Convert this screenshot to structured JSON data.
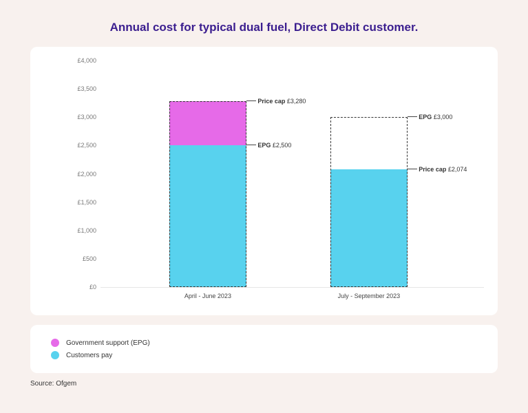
{
  "title": {
    "text": "Annual cost for typical dual fuel, Direct Debit customer.",
    "color": "#3b1e8f",
    "fontsize": 17
  },
  "background_color": "#f8f1ee",
  "card_bg": "#ffffff",
  "chart": {
    "type": "bar-stacked",
    "ylim": [
      0,
      4000
    ],
    "ytick_step": 500,
    "yticks": [
      {
        "v": 0,
        "label": "£0"
      },
      {
        "v": 500,
        "label": "£500"
      },
      {
        "v": 1000,
        "label": "£1,000"
      },
      {
        "v": 1500,
        "label": "£1,500"
      },
      {
        "v": 2000,
        "label": "£2,000"
      },
      {
        "v": 2500,
        "label": "£2,500"
      },
      {
        "v": 3000,
        "label": "£3,000"
      },
      {
        "v": 3500,
        "label": "£3,500"
      },
      {
        "v": 4000,
        "label": "£4,000"
      }
    ],
    "ytick_fontsize": 9,
    "ytick_color": "#777777",
    "axis_color": "#e6e6e6",
    "bar_width_pct": 20,
    "colors": {
      "customers_pay": "#58d2ee",
      "gov_support": "#e66ae8",
      "dash_border": "#333333"
    },
    "bars": [
      {
        "x_center_pct": 28,
        "xlabel": "April - June 2023",
        "price_cap": 3280,
        "customers_pay": 2500,
        "gov_support": 780,
        "dashed_target": 3280,
        "callouts": [
          {
            "boldLabel": "Price cap",
            "value": "£3,280",
            "at": 3280,
            "side": "right"
          },
          {
            "boldLabel": "EPG",
            "value": "£2,500",
            "at": 2500,
            "side": "right"
          }
        ]
      },
      {
        "x_center_pct": 70,
        "xlabel": "July - September 2023",
        "price_cap": 2074,
        "customers_pay": 2074,
        "gov_support": 0,
        "dashed_target": 3000,
        "callouts": [
          {
            "boldLabel": "EPG",
            "value": "£3,000",
            "at": 3000,
            "side": "right"
          },
          {
            "boldLabel": "Price cap",
            "value": "£2,074",
            "at": 2074,
            "side": "right"
          }
        ]
      }
    ]
  },
  "legend": {
    "items": [
      {
        "label": "Government support (EPG)",
        "color": "#e66ae8"
      },
      {
        "label": "Customers pay",
        "color": "#58d2ee"
      }
    ],
    "fontsize": 10
  },
  "source": {
    "text": "Source: Ofgem",
    "fontsize": 10
  }
}
